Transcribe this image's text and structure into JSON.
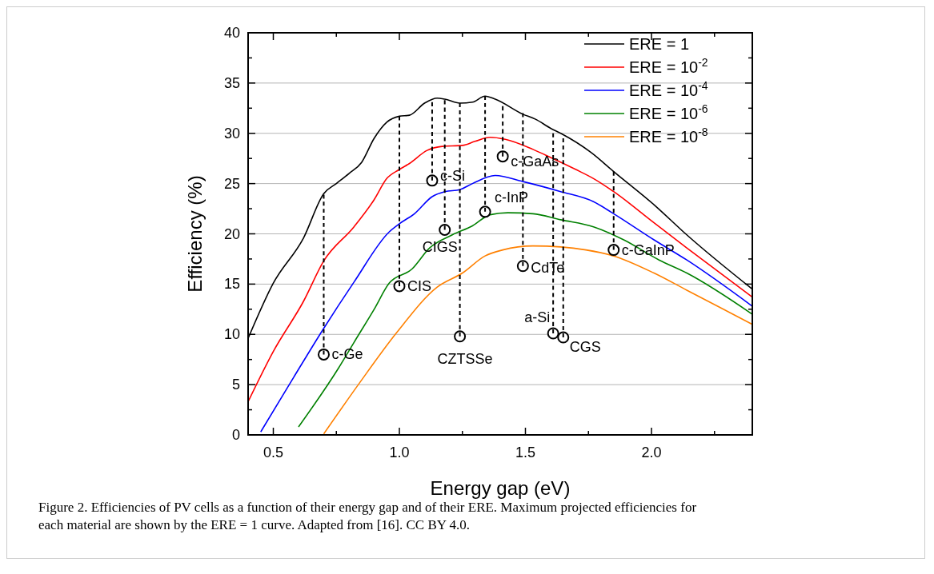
{
  "chart_data": {
    "type": "line",
    "xlabel": "Energy gap (eV)",
    "ylabel": "Efficiency (%)",
    "xlim": [
      0.4,
      2.4
    ],
    "ylim": [
      0,
      40
    ],
    "xticks": [
      {
        "value": 0.5,
        "label": "0.5"
      },
      {
        "value": 0.75,
        "label": null
      },
      {
        "value": 1.0,
        "label": "1.0"
      },
      {
        "value": 1.25,
        "label": null
      },
      {
        "value": 1.5,
        "label": "1.5"
      },
      {
        "value": 1.75,
        "label": null
      },
      {
        "value": 2.0,
        "label": "2.0"
      },
      {
        "value": 2.25,
        "label": null
      }
    ],
    "yticks": [
      0,
      {
        "value": 2.5,
        "label": null
      },
      5,
      {
        "value": 7.5,
        "label": null
      },
      10,
      {
        "value": 12.5,
        "label": null
      },
      15,
      {
        "value": 17.5,
        "label": null
      },
      20,
      {
        "value": 22.5,
        "label": null
      },
      25,
      {
        "value": 27.5,
        "label": null
      },
      30,
      {
        "value": 32.5,
        "label": null
      },
      35,
      {
        "value": 37.5,
        "label": null
      },
      40
    ],
    "grid": "y",
    "legend": "top right",
    "line_style": "solid",
    "marker": "none",
    "series": [
      {
        "name": "ERE = 1",
        "color": "#000000",
        "x": [
          0.4,
          0.5,
          0.62,
          0.7,
          0.75,
          0.8,
          0.85,
          0.9,
          0.95,
          1.0,
          1.04,
          1.1,
          1.15,
          1.18,
          1.24,
          1.29,
          1.34,
          1.38,
          1.49,
          1.54,
          1.6,
          1.64,
          1.76,
          1.85,
          2.01,
          2.14,
          2.4
        ],
        "values": [
          9.6,
          15.1,
          19.6,
          24.0,
          25.0,
          26.0,
          27.1,
          29.5,
          31.1,
          31.7,
          31.8,
          33.0,
          33.5,
          33.4,
          33.0,
          33.1,
          33.7,
          33.4,
          31.9,
          31.4,
          30.5,
          30.0,
          28.1,
          26.2,
          22.9,
          19.9,
          14.5
        ]
      },
      {
        "name": "ERE = 10$^{-2}$",
        "color": "#ff0000",
        "x": [
          0.4,
          0.5,
          0.62,
          0.7,
          0.82,
          0.9,
          0.95,
          1.0,
          1.04,
          1.11,
          1.17,
          1.25,
          1.3,
          1.36,
          1.42,
          1.53,
          1.6,
          1.7,
          1.77,
          1.85,
          2.01,
          2.14,
          2.4
        ],
        "values": [
          3.3,
          8.3,
          13.3,
          17.3,
          20.7,
          23.4,
          25.5,
          26.4,
          27.0,
          28.3,
          28.7,
          28.8,
          29.2,
          29.6,
          29.4,
          28.4,
          27.6,
          26.4,
          25.5,
          24.2,
          21.1,
          18.6,
          13.7
        ]
      },
      {
        "name": "ERE = 10$^{-4}$",
        "color": "#0000ff",
        "x": [
          0.45,
          0.58,
          0.7,
          0.82,
          0.96,
          1.0,
          1.06,
          1.13,
          1.18,
          1.24,
          1.29,
          1.38,
          1.49,
          1.64,
          1.77,
          1.85,
          2.01,
          2.14,
          2.4
        ],
        "values": [
          0.3,
          5.7,
          10.6,
          15.2,
          20.2,
          21.0,
          22.0,
          23.7,
          24.2,
          24.4,
          25.0,
          25.8,
          25.2,
          24.2,
          23.2,
          22.0,
          19.4,
          17.4,
          12.8
        ]
      },
      {
        "name": "ERE = 10$^{-6}$",
        "color": "#008000",
        "x": [
          0.6,
          0.76,
          0.82,
          0.9,
          0.96,
          1.05,
          1.12,
          1.21,
          1.29,
          1.36,
          1.43,
          1.53,
          1.64,
          1.77,
          1.89,
          2.03,
          2.14,
          2.4
        ],
        "values": [
          0.8,
          6.7,
          9.2,
          12.5,
          15.1,
          16.5,
          18.6,
          19.9,
          20.8,
          21.9,
          22.1,
          22.0,
          21.4,
          20.7,
          19.4,
          17.4,
          16.1,
          12.0
        ]
      },
      {
        "name": "ERE = 10$^{-8}$",
        "color": "#ff8000",
        "x": [
          0.7,
          0.84,
          0.99,
          1.15,
          1.25,
          1.34,
          1.41,
          1.53,
          1.64,
          1.74,
          1.85,
          2.01,
          2.14,
          2.4
        ],
        "values": [
          0.1,
          5.1,
          10.2,
          14.7,
          16.1,
          17.8,
          18.4,
          18.8,
          18.7,
          18.4,
          17.8,
          16.1,
          14.4,
          11.0
        ]
      },
      {
        "type": "scatter",
        "marker": "circle",
        "line_style": "dashed",
        "color": "#000000",
        "x": [
          0.7,
          1.0,
          1.13,
          1.18,
          1.24,
          1.34,
          1.41,
          1.49,
          1.61,
          1.65,
          1.85
        ],
        "values": [
          8.0,
          14.8,
          25.3,
          20.4,
          9.8,
          22.2,
          27.7,
          16.8,
          10.1,
          9.7,
          18.4
        ],
        "errors": [
          [
            8.0,
            23.9
          ],
          [
            14.8,
            31.7
          ],
          [
            25.3,
            33.1
          ],
          [
            20.4,
            33.3
          ],
          [
            9.8,
            33.0
          ],
          [
            22.2,
            33.7
          ],
          [
            27.7,
            32.7
          ],
          [
            16.8,
            32.0
          ],
          [
            10.1,
            30.0
          ],
          [
            9.7,
            29.5
          ],
          [
            18.4,
            26.2
          ]
        ]
      }
    ],
    "annotations": [
      {
        "text": "c-Ge",
        "x": 0.7,
        "y": 8.0
      },
      {
        "text": "CIS",
        "x": 1.0,
        "y": 14.8
      },
      {
        "text": "c-Si",
        "x": 1.13,
        "y": 25.3
      },
      {
        "text": "CIGS",
        "x": 1.18,
        "y": 20.4
      },
      {
        "text": "CZTSSe",
        "x": 1.24,
        "y": 9.8
      },
      {
        "text": "c-InP",
        "x": 1.34,
        "y": 22.2
      },
      {
        "text": "c-GaAs",
        "x": 1.41,
        "y": 27.7
      },
      {
        "text": "CdTe",
        "x": 1.49,
        "y": 16.8
      },
      {
        "text": "a-Si",
        "x": 1.61,
        "y": 10.1
      },
      {
        "text": "CGS",
        "x": 1.65,
        "y": 9.7
      },
      {
        "text": "c-GaInP",
        "x": 1.85,
        "y": 18.4
      },
      "Figure 2. Efficiencies of PV cells as a function of their energy gap and of their ERE. Maximum projected efficiencies for each material are shown by the ERE = 1 curve. Adapted from [16]. CC BY 4.0."
    ]
  }
}
